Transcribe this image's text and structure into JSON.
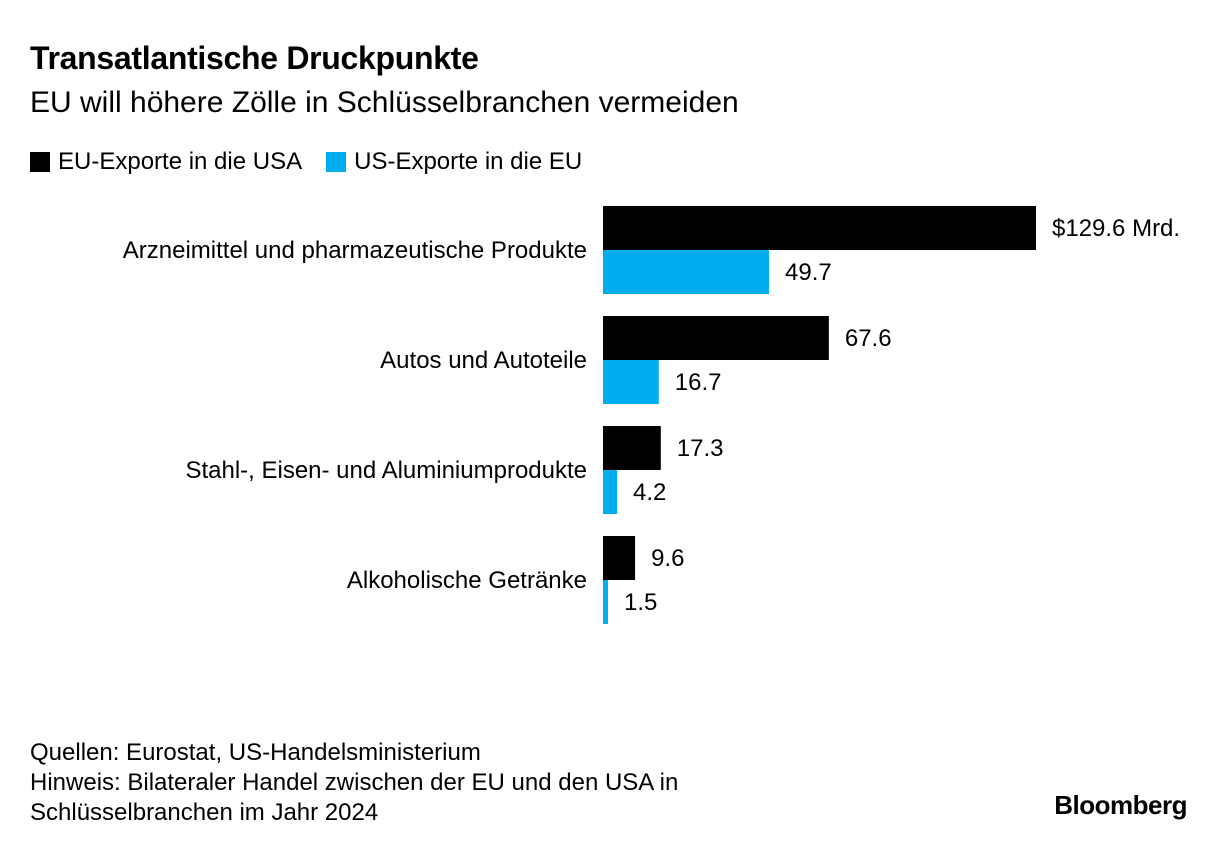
{
  "header": {
    "title": "Transatlantische Druckpunkte",
    "subtitle": "EU will höhere Zölle in Schlüsselbranchen vermeiden"
  },
  "legend": {
    "items": [
      {
        "label": "EU-Exporte in die USA",
        "color": "#000000"
      },
      {
        "label": "US-Exporte in die EU",
        "color": "#00AEEF"
      }
    ]
  },
  "chart_data": {
    "type": "bar",
    "orientation": "horizontal",
    "categories": [
      "Arzneimittel und pharmazeutische Produkte",
      "Autos und Autoteile",
      "Stahl-, Eisen- und Aluminiumprodukte",
      "Alkoholische Getränke"
    ],
    "series": [
      {
        "name": "EU-Exporte in die USA",
        "color": "#000000",
        "values": [
          129.6,
          67.6,
          17.3,
          9.6
        ],
        "labels": [
          "$129.6 Mrd.",
          "67.6",
          "17.3",
          "9.6"
        ]
      },
      {
        "name": "US-Exporte in die EU",
        "color": "#00AEEF",
        "values": [
          49.7,
          16.7,
          4.2,
          1.5
        ],
        "labels": [
          "49.7",
          "16.7",
          "4.2",
          "1.5"
        ]
      }
    ],
    "xlim": [
      0,
      129.6
    ],
    "grid": false,
    "legend_position": "top-left"
  },
  "footer": {
    "sources": "Quellen: Eurostat, US-Handelsministerium",
    "note_line1": "Hinweis: Bilateraler Handel zwischen der EU und den USA in",
    "note_line2": "Schlüsselbranchen im Jahr 2024"
  },
  "brand": "Bloomberg"
}
